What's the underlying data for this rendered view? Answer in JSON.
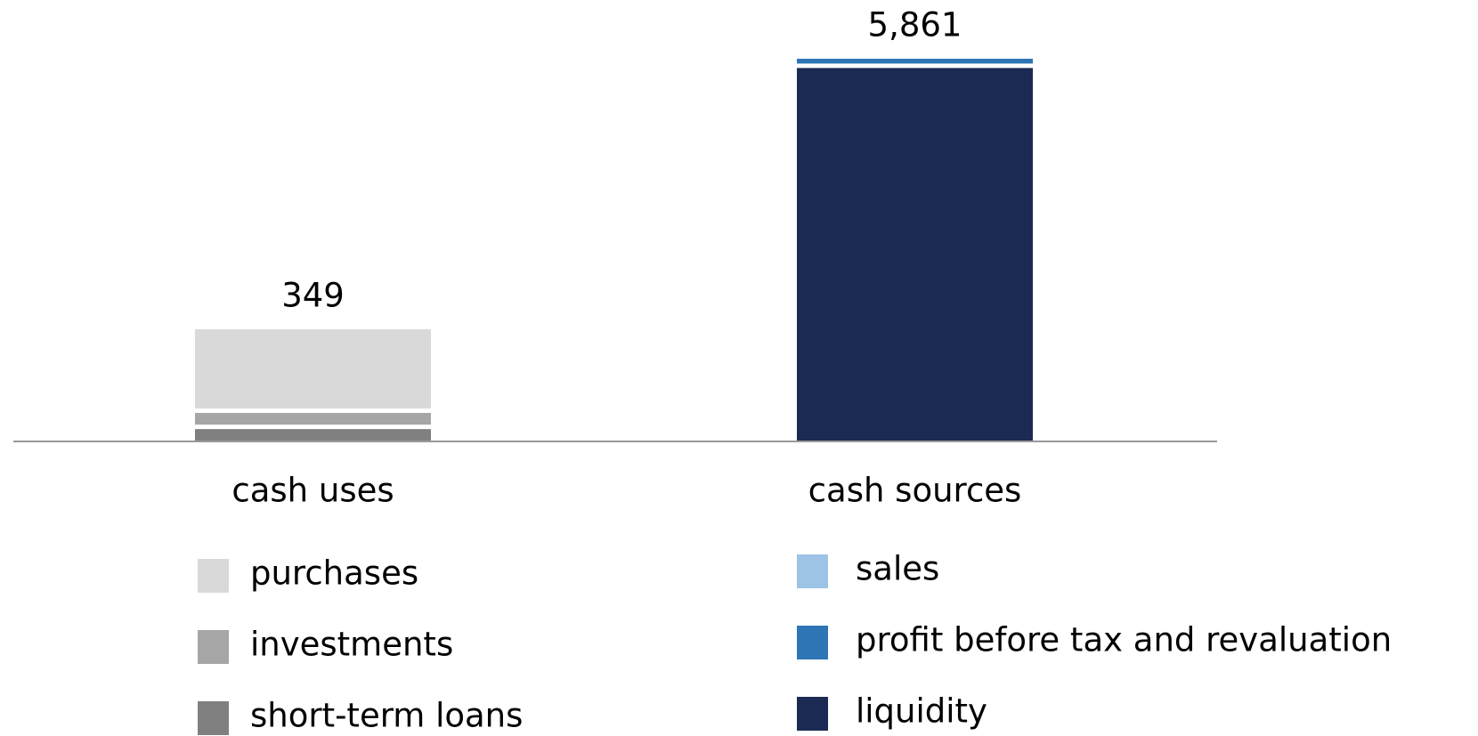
{
  "chart_data": {
    "type": "stacked_bar",
    "categories": [
      "cash uses",
      "cash sources"
    ],
    "totals": [
      349,
      5861
    ],
    "total_labels": [
      "349",
      "5,861"
    ],
    "series": [
      {
        "name": "purchases",
        "color": "#d9d9d9",
        "values": [
          270,
          null
        ]
      },
      {
        "name": "investments",
        "color": "#a6a6a6",
        "values": [
          40,
          null
        ]
      },
      {
        "name": "short-term loans",
        "color": "#808080",
        "values": [
          39,
          null
        ]
      },
      {
        "name": "sales",
        "color": "#9dc3e6",
        "values": [
          null,
          0
        ]
      },
      {
        "name": "profit before tax and revaluation",
        "color": "#2e75b6",
        "values": [
          null,
          75
        ]
      },
      {
        "name": "liquidity",
        "color": "#1b2a52",
        "values": [
          null,
          5786
        ]
      }
    ]
  }
}
